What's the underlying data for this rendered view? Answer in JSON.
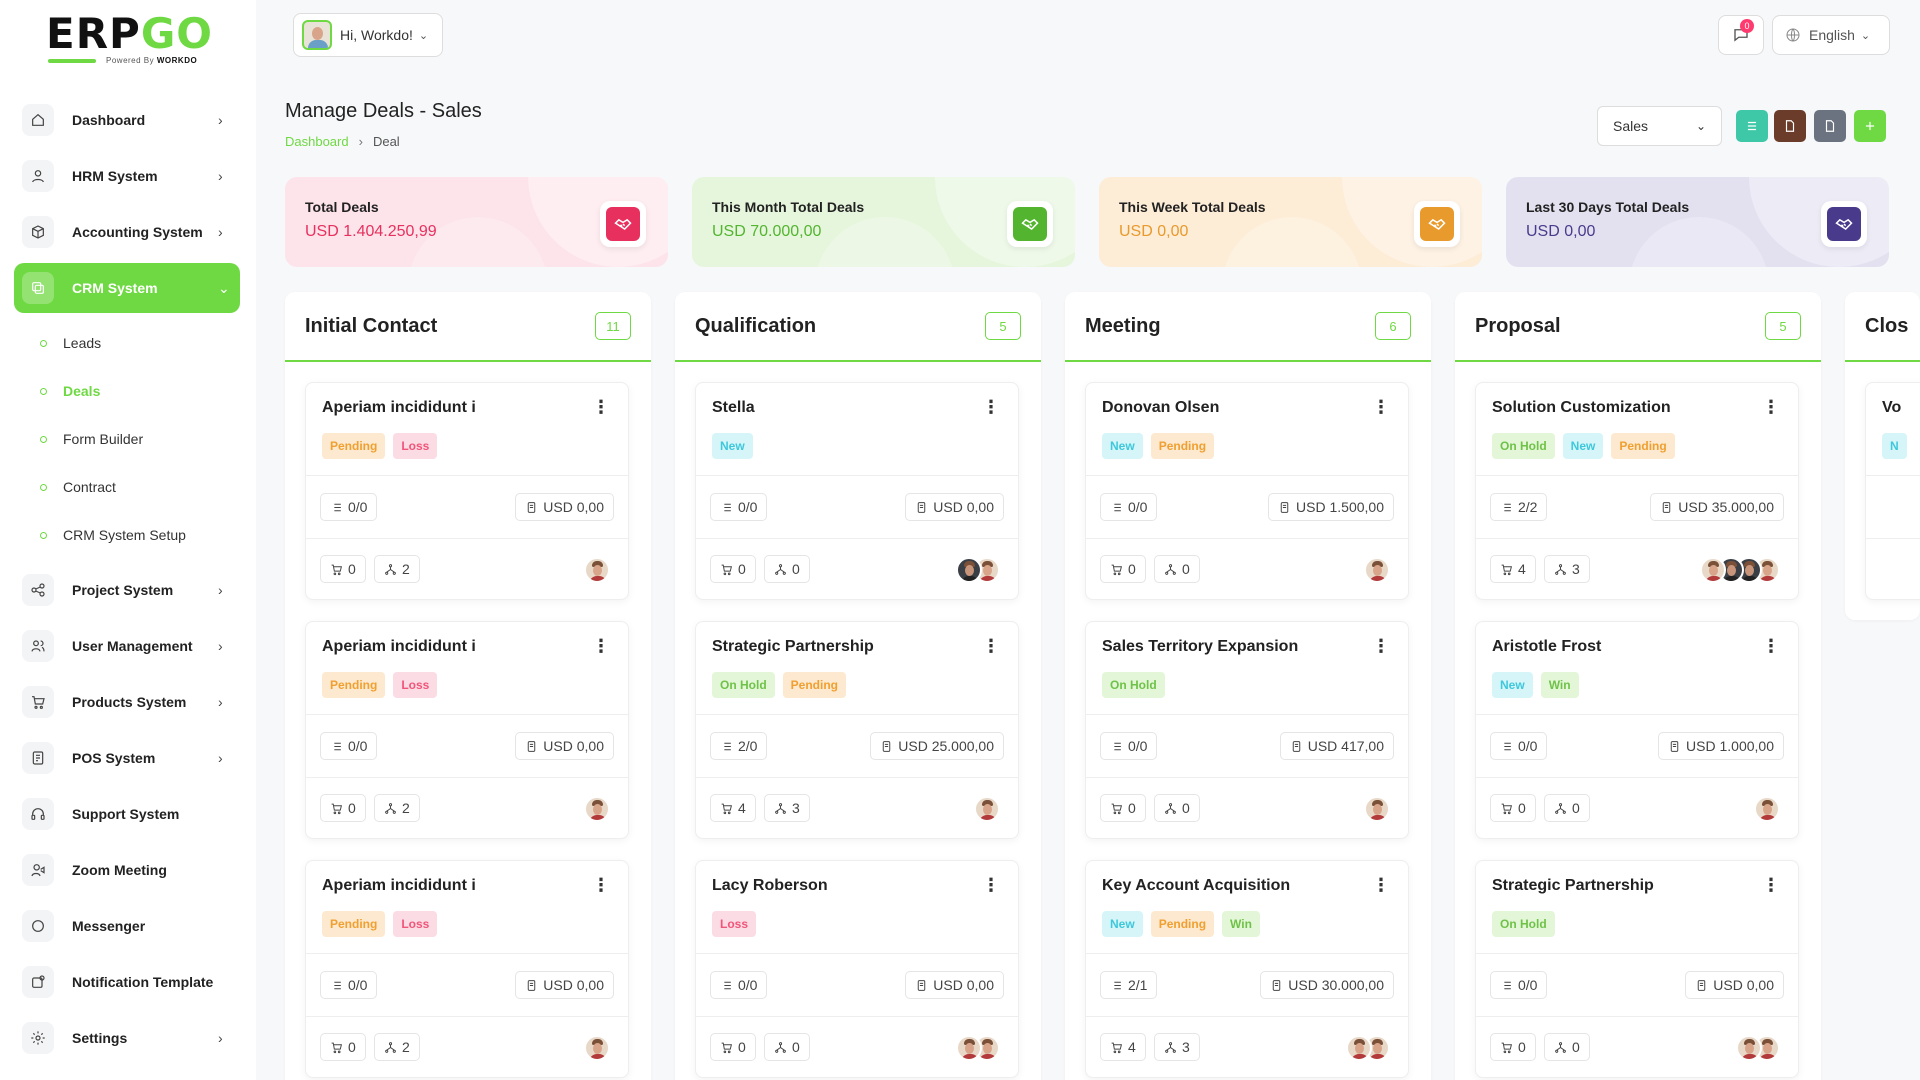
{
  "brand": {
    "logo_main": "ERP",
    "logo_go": "GO",
    "powered_prefix": "Powered By",
    "powered_name": "WORKDO"
  },
  "header": {
    "greeting": "Hi, Workdo!",
    "notification_count": "0",
    "language": "English"
  },
  "sidebar": {
    "items": [
      {
        "label": "Dashboard",
        "icon": "home-icon",
        "chevron": true
      },
      {
        "label": "HRM System",
        "icon": "user-icon",
        "chevron": true
      },
      {
        "label": "Accounting System",
        "icon": "box-icon",
        "chevron": true
      },
      {
        "label": "CRM System",
        "icon": "layers-icon",
        "chevron": true,
        "active": true
      },
      {
        "label": "Project System",
        "icon": "share-icon",
        "chevron": true
      },
      {
        "label": "User Management",
        "icon": "users-icon",
        "chevron": true
      },
      {
        "label": "Products System",
        "icon": "cart-icon",
        "chevron": true
      },
      {
        "label": "POS System",
        "icon": "pos-icon",
        "chevron": true
      },
      {
        "label": "Support System",
        "icon": "headset-icon",
        "chevron": false
      },
      {
        "label": "Zoom Meeting",
        "icon": "user-video-icon",
        "chevron": false
      },
      {
        "label": "Messenger",
        "icon": "chat-icon",
        "chevron": false
      },
      {
        "label": "Notification Template",
        "icon": "notification-icon",
        "chevron": false
      },
      {
        "label": "Settings",
        "icon": "gear-icon",
        "chevron": true
      }
    ],
    "crm_sub": [
      {
        "label": "Leads"
      },
      {
        "label": "Deals",
        "active": true
      },
      {
        "label": "Form Builder"
      },
      {
        "label": "Contract"
      },
      {
        "label": "CRM System Setup"
      }
    ]
  },
  "page": {
    "title": "Manage Deals - Sales",
    "breadcrumb": [
      "Dashboard",
      "Deal"
    ],
    "pipeline_select": "Sales"
  },
  "stats": [
    {
      "title": "Total Deals",
      "value": "USD 1.404.250,99",
      "color": "#e8305e",
      "bg": "#fde3ea"
    },
    {
      "title": "This Month Total Deals",
      "value": "USD 70.000,00",
      "color": "#53b52f",
      "bg": "#e6f6dd"
    },
    {
      "title": "This Week Total Deals",
      "value": "USD 0,00",
      "color": "#e99a2c",
      "bg": "#fdecd6"
    },
    {
      "title": "Last 30 Days Total Deals",
      "value": "USD 0,00",
      "color": "#4a3a8c",
      "bg": "#e3e1f0"
    }
  ],
  "columns": [
    {
      "title": "Initial Contact",
      "count": "11",
      "cards": [
        {
          "title": "Aperiam incididunt i",
          "tags": [
            "Pending",
            "Loss"
          ],
          "tasks": "0/0",
          "amount": "USD 0,00",
          "products": "0",
          "sources": "2",
          "avatars": [
            "light"
          ]
        },
        {
          "title": "Aperiam incididunt i",
          "tags": [
            "Pending",
            "Loss"
          ],
          "tasks": "0/0",
          "amount": "USD 0,00",
          "products": "0",
          "sources": "2",
          "avatars": [
            "light"
          ]
        },
        {
          "title": "Aperiam incididunt i",
          "tags": [
            "Pending",
            "Loss"
          ],
          "tasks": "0/0",
          "amount": "USD 0,00",
          "products": "0",
          "sources": "2",
          "avatars": [
            "light"
          ]
        }
      ]
    },
    {
      "title": "Qualification",
      "count": "5",
      "cards": [
        {
          "title": "Stella",
          "tags": [
            "New"
          ],
          "tasks": "0/0",
          "amount": "USD 0,00",
          "products": "0",
          "sources": "0",
          "avatars": [
            "light",
            "dark"
          ]
        },
        {
          "title": "Strategic Partnership",
          "tags": [
            "On Hold",
            "Pending"
          ],
          "tasks": "2/0",
          "amount": "USD 25.000,00",
          "products": "4",
          "sources": "3",
          "avatars": [
            "light"
          ]
        },
        {
          "title": "Lacy Roberson",
          "tags": [
            "Loss"
          ],
          "tasks": "0/0",
          "amount": "USD 0,00",
          "products": "0",
          "sources": "0",
          "avatars": [
            "light",
            "light"
          ]
        }
      ]
    },
    {
      "title": "Meeting",
      "count": "6",
      "cards": [
        {
          "title": "Donovan Olsen",
          "tags": [
            "New",
            "Pending"
          ],
          "tasks": "0/0",
          "amount": "USD 1.500,00",
          "products": "0",
          "sources": "0",
          "avatars": [
            "light"
          ]
        },
        {
          "title": "Sales Territory Expansion",
          "tags": [
            "On Hold"
          ],
          "tasks": "0/0",
          "amount": "USD 417,00",
          "products": "0",
          "sources": "0",
          "avatars": [
            "light"
          ]
        },
        {
          "title": "Key Account Acquisition",
          "tags": [
            "New",
            "Pending",
            "Win"
          ],
          "tasks": "2/1",
          "amount": "USD 30.000,00",
          "products": "4",
          "sources": "3",
          "avatars": [
            "light",
            "light"
          ]
        }
      ]
    },
    {
      "title": "Proposal",
      "count": "5",
      "cards": [
        {
          "title": "Solution Customization",
          "tags": [
            "On Hold",
            "New",
            "Pending"
          ],
          "tasks": "2/2",
          "amount": "USD 35.000,00",
          "products": "4",
          "sources": "3",
          "avatars": [
            "light",
            "dark",
            "dark",
            "light"
          ]
        },
        {
          "title": "Aristotle Frost",
          "tags": [
            "New",
            "Win"
          ],
          "tasks": "0/0",
          "amount": "USD 1.000,00",
          "products": "0",
          "sources": "0",
          "avatars": [
            "light"
          ]
        },
        {
          "title": "Strategic Partnership",
          "tags": [
            "On Hold"
          ],
          "tasks": "0/0",
          "amount": "USD 0,00",
          "products": "0",
          "sources": "0",
          "avatars": [
            "light",
            "light"
          ]
        }
      ]
    },
    {
      "title": "Clos",
      "count": "",
      "cards": [
        {
          "title": "Vo",
          "tags": [
            "N"
          ],
          "tasks": "",
          "amount": "",
          "products": "",
          "sources": "",
          "avatars": []
        }
      ]
    }
  ]
}
